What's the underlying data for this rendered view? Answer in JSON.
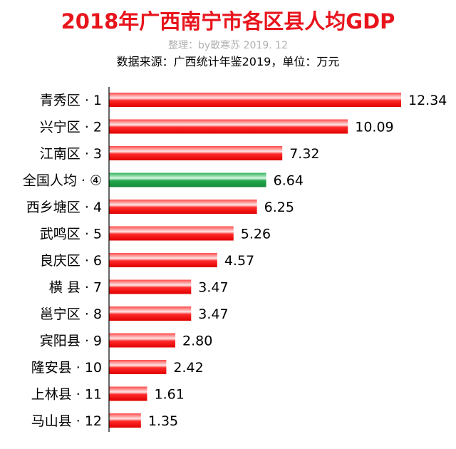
{
  "chart_data": {
    "type": "bar",
    "orientation": "horizontal",
    "title": "2018年广西南宁市各区县人均GDP",
    "subtitle": "整理：by散寒苏 2019. 12",
    "source_note": "数据来源：广西统计年鉴2019，单位：万元",
    "categories": [
      "青秀区 · 1",
      "兴宁区 · 2",
      "江南区 · 3",
      "全国人均 · ④",
      "西乡塘区 · 4",
      "武鸣区 · 5",
      "良庆区 · 6",
      "横 县 · 7",
      "邕宁区 · 8",
      "宾阳县 · 9",
      "隆安县 · 10",
      "上林县 · 11",
      "马山县 · 12"
    ],
    "values": [
      12.34,
      10.09,
      7.32,
      6.64,
      6.25,
      5.26,
      4.57,
      3.47,
      3.47,
      2.8,
      2.42,
      1.61,
      1.35
    ],
    "value_labels": [
      "12.34",
      "10.09",
      "7.32",
      "6.64",
      "6.25",
      "5.26",
      "4.57",
      "3.47",
      "3.47",
      "2.80",
      "2.42",
      "1.61",
      "1.35"
    ],
    "highlight_index": 3,
    "xlim": [
      0,
      12.34
    ],
    "grid": false,
    "legend": "none",
    "colors": {
      "title": "#e8141c",
      "subtitle": "#b0b0b0",
      "source_note": "#000000",
      "bar": "#f20a0a",
      "bar_highlight": "#1fa64a",
      "axis": "#000000",
      "label": "#000000"
    }
  }
}
